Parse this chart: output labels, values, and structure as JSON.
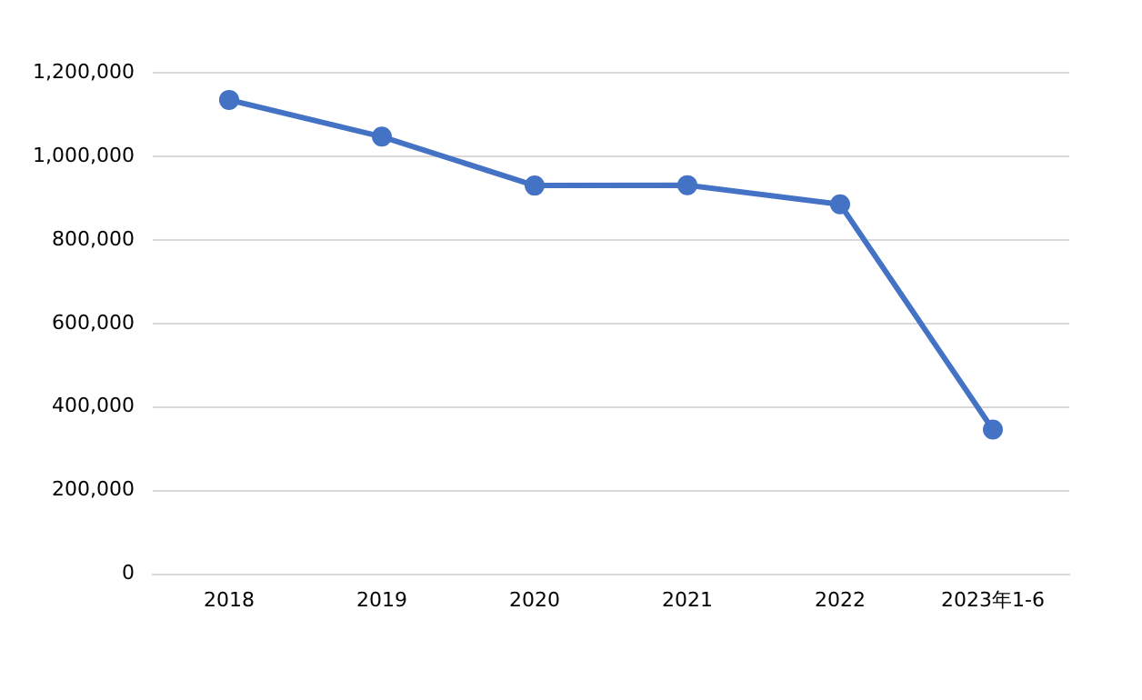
{
  "chart_data": {
    "type": "line",
    "categories": [
      "2018",
      "2019",
      "2020",
      "2021",
      "2022",
      "2023年1-6"
    ],
    "series": [
      {
        "color": "#4472c4",
        "values": [
          1135000,
          1047000,
          930000,
          931000,
          885000,
          346000
        ]
      }
    ],
    "ylim": [
      0,
      1200000
    ],
    "yticks": [
      {
        "value": 0,
        "label": "0"
      },
      {
        "value": 200000,
        "label": "200,000"
      },
      {
        "value": 400000,
        "label": "400,000"
      },
      {
        "value": 600000,
        "label": "600,000"
      },
      {
        "value": 800000,
        "label": "800,000"
      },
      {
        "value": 1000000,
        "label": "1,000,000"
      },
      {
        "value": 1200000,
        "label": "1,200,000"
      }
    ],
    "grid": "y",
    "legend": false,
    "marker": "circle",
    "line_style": "solid"
  }
}
